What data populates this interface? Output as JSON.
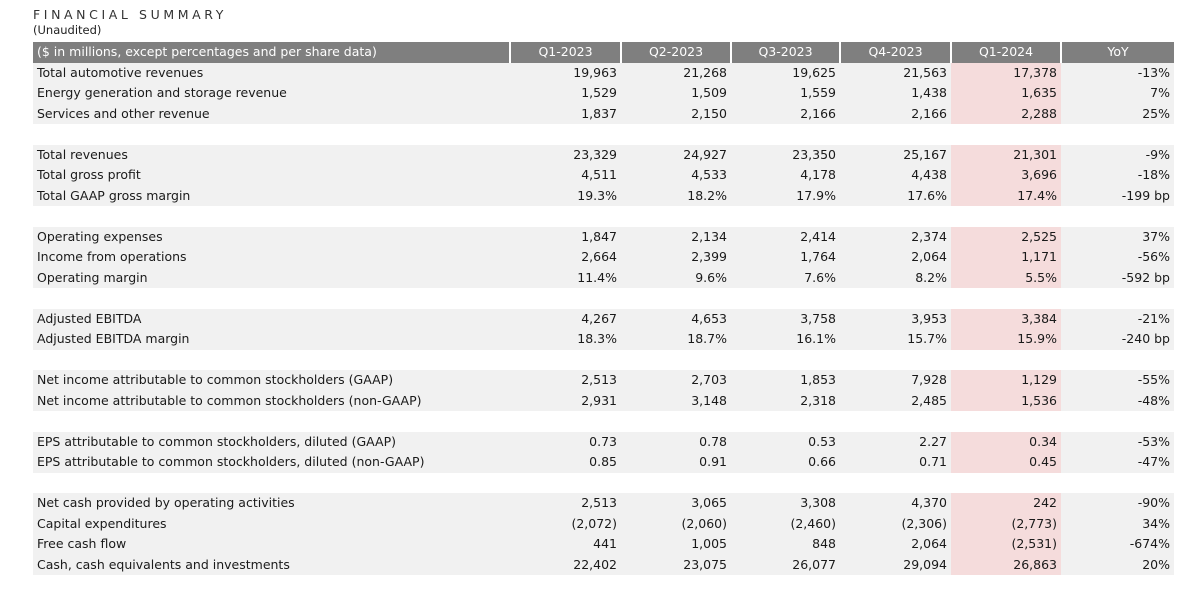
{
  "title": "FINANCIAL SUMMARY",
  "subtitle": "(Unaudited)",
  "header": {
    "label": "($ in millions, except percentages and per share data)",
    "columns": [
      "Q1-2023",
      "Q2-2023",
      "Q3-2023",
      "Q4-2023",
      "Q1-2024",
      "YoY"
    ]
  },
  "groups": [
    {
      "rows": [
        {
          "label": "Total automotive revenues",
          "values": [
            "19,963",
            "21,268",
            "19,625",
            "21,563",
            "17,378",
            "-13%"
          ]
        },
        {
          "label": "Energy generation and storage revenue",
          "values": [
            "1,529",
            "1,509",
            "1,559",
            "1,438",
            "1,635",
            "7%"
          ]
        },
        {
          "label": "Services and other revenue",
          "values": [
            "1,837",
            "2,150",
            "2,166",
            "2,166",
            "2,288",
            "25%"
          ]
        }
      ]
    },
    {
      "rows": [
        {
          "label": "Total revenues",
          "values": [
            "23,329",
            "24,927",
            "23,350",
            "25,167",
            "21,301",
            "-9%"
          ]
        },
        {
          "label": "Total gross profit",
          "values": [
            "4,511",
            "4,533",
            "4,178",
            "4,438",
            "3,696",
            "-18%"
          ]
        },
        {
          "label": "Total GAAP gross margin",
          "values": [
            "19.3%",
            "18.2%",
            "17.9%",
            "17.6%",
            "17.4%",
            "-199 bp"
          ]
        }
      ]
    },
    {
      "rows": [
        {
          "label": "Operating expenses",
          "values": [
            "1,847",
            "2,134",
            "2,414",
            "2,374",
            "2,525",
            "37%"
          ]
        },
        {
          "label": "Income from operations",
          "values": [
            "2,664",
            "2,399",
            "1,764",
            "2,064",
            "1,171",
            "-56%"
          ]
        },
        {
          "label": "Operating margin",
          "values": [
            "11.4%",
            "9.6%",
            "7.6%",
            "8.2%",
            "5.5%",
            "-592 bp"
          ]
        }
      ]
    },
    {
      "rows": [
        {
          "label": "Adjusted EBITDA",
          "values": [
            "4,267",
            "4,653",
            "3,758",
            "3,953",
            "3,384",
            "-21%"
          ]
        },
        {
          "label": "Adjusted EBITDA margin",
          "values": [
            "18.3%",
            "18.7%",
            "16.1%",
            "15.7%",
            "15.9%",
            "-240 bp"
          ]
        }
      ]
    },
    {
      "rows": [
        {
          "label": "Net income attributable to common stockholders (GAAP)",
          "values": [
            "2,513",
            "2,703",
            "1,853",
            "7,928",
            "1,129",
            "-55%"
          ]
        },
        {
          "label": "Net income attributable to common stockholders (non-GAAP)",
          "values": [
            "2,931",
            "3,148",
            "2,318",
            "2,485",
            "1,536",
            "-48%"
          ]
        }
      ]
    },
    {
      "rows": [
        {
          "label": "EPS attributable to common stockholders, diluted (GAAP)",
          "values": [
            "0.73",
            "0.78",
            "0.53",
            "2.27",
            "0.34",
            "-53%"
          ]
        },
        {
          "label": "EPS attributable to common stockholders, diluted (non-GAAP)",
          "values": [
            "0.85",
            "0.91",
            "0.66",
            "0.71",
            "0.45",
            "-47%"
          ]
        }
      ]
    },
    {
      "rows": [
        {
          "label": "Net cash provided by operating activities",
          "values": [
            "2,513",
            "3,065",
            "3,308",
            "4,370",
            "242",
            "-90%"
          ]
        },
        {
          "label": "Capital expenditures",
          "values": [
            "(2,072)",
            "(2,060)",
            "(2,460)",
            "(2,306)",
            "(2,773)",
            "34%"
          ]
        },
        {
          "label": "Free cash flow",
          "values": [
            "441",
            "1,005",
            "848",
            "2,064",
            "(2,531)",
            "-674%"
          ]
        },
        {
          "label": "Cash, cash equivalents and investments",
          "values": [
            "22,402",
            "23,075",
            "26,077",
            "29,094",
            "26,863",
            "20%"
          ]
        }
      ]
    }
  ],
  "colors": {
    "header_bg": "#7f7f7f",
    "row_bg": "#f1f1f1",
    "highlight_bg": "#f5dcdc"
  }
}
